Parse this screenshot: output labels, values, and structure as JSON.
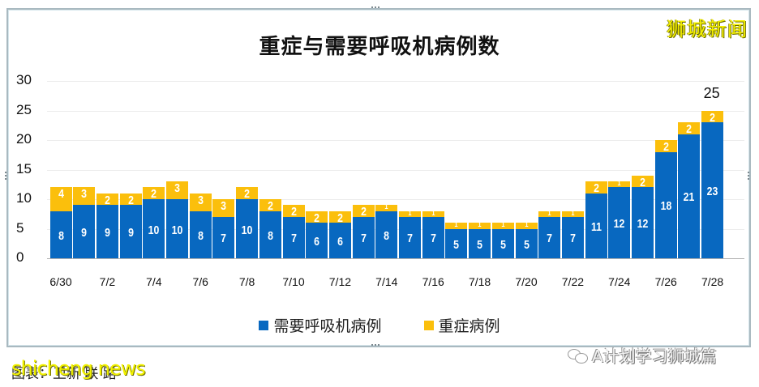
{
  "title": "重症与需要呼吸机病例数",
  "watermark_top": "狮城新闻",
  "legend": [
    {
      "label": "需要呼吸机病例",
      "color": "#0868c0"
    },
    {
      "label": "重症病例",
      "color": "#fbbf0c"
    }
  ],
  "y_ticks": [
    "30",
    "25",
    "20",
    "15",
    "10",
    "5",
    "0"
  ],
  "x_ticks": [
    "6/30",
    "7/2",
    "7/4",
    "7/6",
    "7/8",
    "7/10",
    "7/12",
    "7/14",
    "7/16",
    "7/18",
    "7/20",
    "7/22",
    "7/24",
    "7/26",
    "7/28"
  ],
  "total_annotation": "25",
  "caption": "图表：卫新 联 路",
  "caption_watermark": "shicheng news",
  "credit": "A计划学习狮城篇",
  "chart_data": {
    "type": "bar",
    "stacked": true,
    "title": "重症与需要呼吸机病例数",
    "xlabel": "",
    "ylabel": "",
    "ylim": [
      0,
      30
    ],
    "grid": true,
    "legend_position": "bottom",
    "categories": [
      "6/30",
      "7/1",
      "7/2",
      "7/3",
      "7/4",
      "7/5",
      "7/6",
      "7/7",
      "7/8",
      "7/9",
      "7/10",
      "7/11",
      "7/12",
      "7/13",
      "7/14",
      "7/15",
      "7/16",
      "7/17",
      "7/18",
      "7/19",
      "7/20",
      "7/21",
      "7/22",
      "7/23",
      "7/24",
      "7/25",
      "7/26",
      "7/27",
      "7/28"
    ],
    "series": [
      {
        "name": "需要呼吸机病例",
        "color": "#0868c0",
        "values": [
          8,
          9,
          9,
          9,
          10,
          10,
          8,
          7,
          10,
          8,
          7,
          6,
          6,
          7,
          8,
          7,
          7,
          5,
          5,
          5,
          5,
          7,
          7,
          11,
          12,
          12,
          18,
          21,
          23
        ]
      },
      {
        "name": "重症病例",
        "color": "#fbbf0c",
        "values": [
          4,
          3,
          2,
          2,
          2,
          3,
          3,
          3,
          2,
          2,
          2,
          2,
          2,
          2,
          1,
          1,
          1,
          1,
          1,
          1,
          1,
          1,
          1,
          2,
          1,
          2,
          2,
          2,
          2
        ]
      }
    ],
    "annotations": [
      {
        "x": "7/28",
        "text": "25"
      }
    ]
  }
}
